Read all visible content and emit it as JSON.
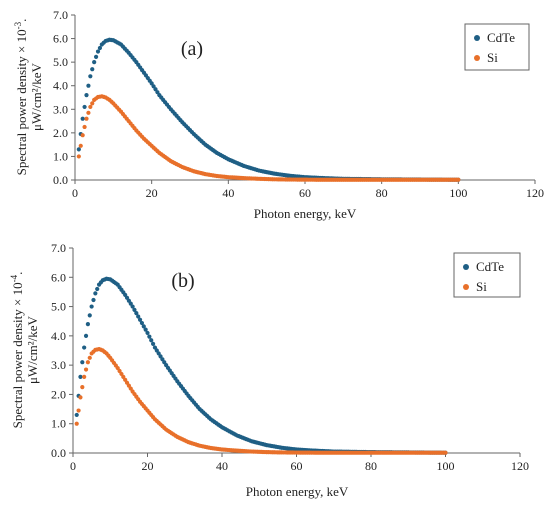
{
  "chart_data": [
    {
      "type": "scatter",
      "panel_label": "(a)",
      "title": "",
      "xlabel": "Photon energy, keV",
      "ylabel_line1": "Spectral power density × 10",
      "ylabel_exp": "-3",
      "ylabel_line1_end": ".",
      "ylabel_line2": "μW/cm²/keV",
      "xlim": [
        0,
        120
      ],
      "ylim": [
        0,
        7
      ],
      "xticks": [
        "0",
        "20",
        "40",
        "60",
        "80",
        "100",
        "120"
      ],
      "yticks": [
        "0.0",
        "1.0",
        "2.0",
        "3.0",
        "4.0",
        "5.0",
        "6.0",
        "7.0"
      ],
      "grid": false,
      "legend_placement": "top-right",
      "series": [
        {
          "name": "CdTe",
          "color": "#1f5f85",
          "x": [
            1,
            2,
            3,
            4,
            5,
            6,
            7,
            8,
            9,
            10,
            12,
            14,
            16,
            18,
            20,
            22,
            25,
            28,
            31,
            34,
            37,
            40,
            44,
            48,
            52,
            56,
            60,
            65,
            70,
            75,
            80,
            85,
            90,
            95,
            100
          ],
          "values": [
            1.3,
            2.6,
            3.6,
            4.4,
            5.0,
            5.45,
            5.75,
            5.9,
            5.95,
            5.93,
            5.75,
            5.4,
            5.0,
            4.55,
            4.1,
            3.6,
            3.0,
            2.45,
            1.95,
            1.5,
            1.15,
            0.88,
            0.6,
            0.4,
            0.27,
            0.18,
            0.12,
            0.08,
            0.05,
            0.04,
            0.03,
            0.025,
            0.02,
            0.015,
            0.01
          ]
        },
        {
          "name": "Si",
          "color": "#e8702a",
          "x": [
            1,
            2,
            3,
            4,
            5,
            6,
            7,
            8,
            9,
            10,
            12,
            14,
            16,
            18,
            20,
            22,
            25,
            28,
            31,
            34,
            37,
            40,
            44,
            48,
            52,
            56,
            60,
            65,
            70,
            75,
            80,
            85,
            90,
            95,
            100
          ],
          "values": [
            1.0,
            1.9,
            2.6,
            3.1,
            3.4,
            3.52,
            3.55,
            3.5,
            3.4,
            3.25,
            2.9,
            2.5,
            2.1,
            1.75,
            1.45,
            1.15,
            0.8,
            0.55,
            0.37,
            0.25,
            0.17,
            0.12,
            0.08,
            0.05,
            0.03,
            0.02,
            0.015,
            0.01,
            0.01,
            0.01,
            0.01,
            0.01,
            0.01,
            0.01,
            0.01
          ]
        }
      ]
    },
    {
      "type": "scatter",
      "panel_label": "(b)",
      "title": "",
      "xlabel": "Photon energy, keV",
      "ylabel_line1": "Spectral power density × 10",
      "ylabel_exp": "-4",
      "ylabel_line1_end": ".",
      "ylabel_line2": "μW/cm²/keV",
      "xlim": [
        0,
        120
      ],
      "ylim": [
        0,
        7
      ],
      "xticks": [
        "0",
        "20",
        "40",
        "60",
        "80",
        "100",
        "120"
      ],
      "yticks": [
        "0.0",
        "1.0",
        "2.0",
        "3.0",
        "4.0",
        "5.0",
        "6.0",
        "7.0"
      ],
      "grid": false,
      "legend_placement": "top-right",
      "series": [
        {
          "name": "CdTe",
          "color": "#1f5f85",
          "x": [
            1,
            2,
            3,
            4,
            5,
            6,
            7,
            8,
            9,
            10,
            12,
            14,
            16,
            18,
            20,
            22,
            25,
            28,
            31,
            34,
            37,
            40,
            44,
            48,
            52,
            56,
            60,
            65,
            70,
            75,
            80,
            85,
            90,
            95,
            100
          ],
          "values": [
            1.3,
            2.6,
            3.6,
            4.4,
            5.0,
            5.45,
            5.75,
            5.9,
            5.95,
            5.93,
            5.75,
            5.4,
            5.0,
            4.55,
            4.1,
            3.6,
            3.0,
            2.45,
            1.95,
            1.5,
            1.15,
            0.88,
            0.6,
            0.4,
            0.27,
            0.18,
            0.12,
            0.08,
            0.05,
            0.04,
            0.03,
            0.025,
            0.02,
            0.015,
            0.01
          ]
        },
        {
          "name": "Si",
          "color": "#e8702a",
          "x": [
            1,
            2,
            3,
            4,
            5,
            6,
            7,
            8,
            9,
            10,
            12,
            14,
            16,
            18,
            20,
            22,
            25,
            28,
            31,
            34,
            37,
            40,
            44,
            48,
            52,
            56,
            60,
            65,
            70,
            75,
            80,
            85,
            90,
            95,
            100
          ],
          "values": [
            1.0,
            1.9,
            2.6,
            3.1,
            3.4,
            3.52,
            3.55,
            3.5,
            3.4,
            3.25,
            2.9,
            2.5,
            2.1,
            1.75,
            1.45,
            1.15,
            0.8,
            0.55,
            0.37,
            0.25,
            0.17,
            0.12,
            0.08,
            0.05,
            0.03,
            0.02,
            0.015,
            0.01,
            0.01,
            0.01,
            0.01,
            0.01,
            0.01,
            0.01,
            0.01
          ]
        }
      ]
    }
  ]
}
